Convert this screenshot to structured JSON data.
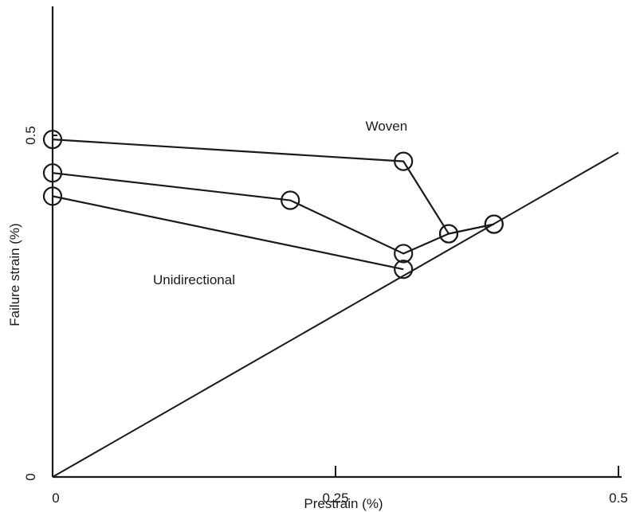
{
  "chart_data": {
    "type": "line",
    "title": "",
    "xlabel": "Prestrain (%)",
    "ylabel": "Failure strain (%)",
    "xlim": [
      0,
      0.5
    ],
    "ylim": [
      0,
      0.5
    ],
    "x_ticks": [
      {
        "value": 0,
        "label": "0"
      },
      {
        "value": 0.25,
        "label": "0.25"
      },
      {
        "value": 0.5,
        "label": "0.5"
      }
    ],
    "y_ticks": [
      {
        "value": 0,
        "label": "0"
      },
      {
        "value": 0.5,
        "label": "0.5"
      }
    ],
    "grid": false,
    "annotations": [
      {
        "text": "Woven",
        "x": 0.295,
        "y": 0.5
      },
      {
        "text": "Unidirectional",
        "x": 0.125,
        "y": 0.275
      }
    ],
    "reference_line": {
      "x": [
        0,
        0.5
      ],
      "y": [
        0,
        0.475
      ]
    },
    "series": [
      {
        "x": [
          0,
          0.31,
          0.35,
          0.39
        ],
        "y": [
          0.494,
          0.462,
          0.356,
          0.37
        ],
        "marker": "circle"
      },
      {
        "x": [
          0,
          0.21,
          0.31,
          0.35,
          0.39
        ],
        "y": [
          0.445,
          0.405,
          0.327,
          0.356,
          0.37
        ],
        "marker": "circle"
      },
      {
        "x": [
          0,
          0.31
        ],
        "y": [
          0.411,
          0.304
        ],
        "marker": "circle"
      }
    ]
  }
}
